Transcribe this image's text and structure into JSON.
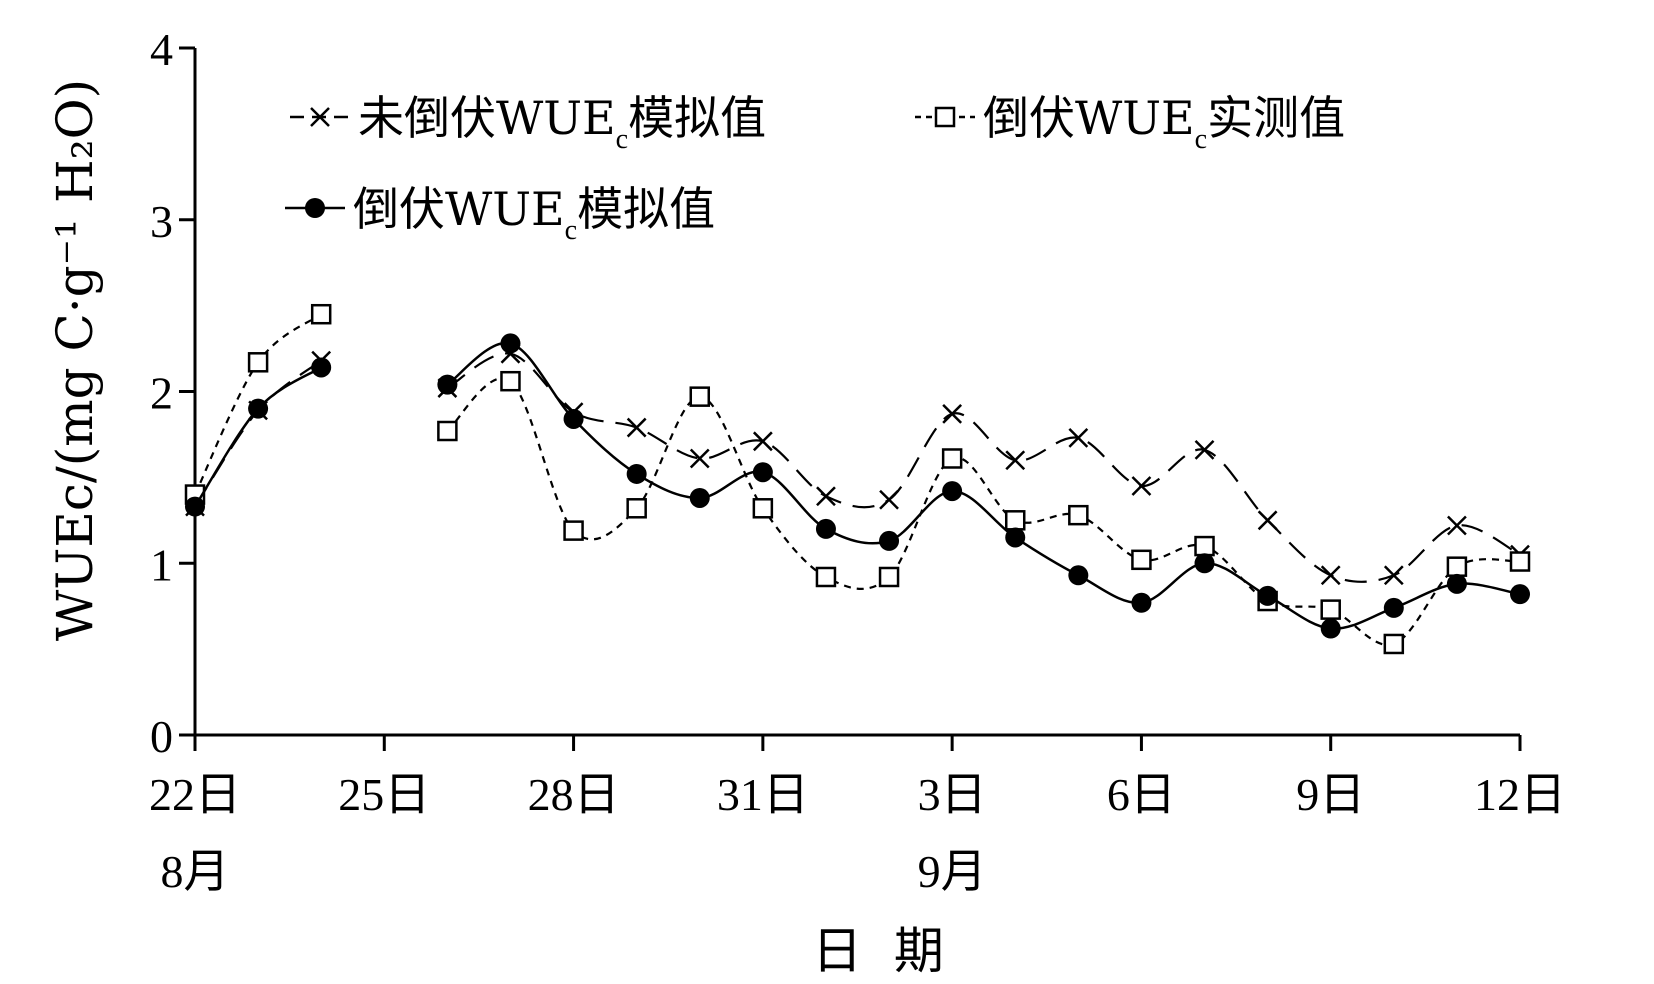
{
  "chart_data": {
    "type": "line",
    "title": "",
    "xlabel": "日  期",
    "ylabel": "WUEc/(mg C·g⁻¹ H₂O)",
    "ylim": [
      0,
      4
    ],
    "yticks": [
      0,
      1,
      2,
      3,
      4
    ],
    "x_tick_labels": [
      {
        "day": 0,
        "label": "22日"
      },
      {
        "day": 3,
        "label": "25日"
      },
      {
        "day": 6,
        "label": "28日"
      },
      {
        "day": 9,
        "label": "31日"
      },
      {
        "day": 12,
        "label": "3日"
      },
      {
        "day": 15,
        "label": "6日"
      },
      {
        "day": 18,
        "label": "9日"
      },
      {
        "day": 21,
        "label": "12日"
      }
    ],
    "month_labels": [
      {
        "day": 0,
        "label": "8月"
      },
      {
        "day": 12,
        "label": "9月"
      }
    ],
    "x": [
      "8-22",
      "8-23",
      "8-24",
      "8-25",
      "8-26",
      "8-27",
      "8-28",
      "8-29",
      "8-30",
      "8-31",
      "9-1",
      "9-2",
      "9-3",
      "9-4",
      "9-5",
      "9-6",
      "9-7",
      "9-8",
      "9-9",
      "9-10",
      "9-11",
      "9-12"
    ],
    "series": [
      {
        "name": "未倒伏WUEc模拟值",
        "legend_main": "未倒伏WUE",
        "legend_sub": "c",
        "legend_tail": "模拟值",
        "marker": "x",
        "line": "dashed",
        "values": [
          1.33,
          1.89,
          2.18,
          null,
          2.02,
          2.22,
          1.88,
          1.79,
          1.61,
          1.71,
          1.39,
          1.37,
          1.87,
          1.6,
          1.73,
          1.45,
          1.66,
          1.25,
          0.93,
          0.93,
          1.22,
          1.05
        ]
      },
      {
        "name": "倒伏WUEc实测值",
        "legend_main": "倒伏WUE",
        "legend_sub": "c",
        "legend_tail": "实测值",
        "marker": "square",
        "line": "dotted",
        "values": [
          1.4,
          2.17,
          2.45,
          null,
          1.77,
          2.06,
          1.19,
          1.32,
          1.97,
          1.32,
          0.92,
          0.92,
          1.61,
          1.25,
          1.28,
          1.02,
          1.1,
          0.78,
          0.73,
          0.53,
          0.98,
          1.01
        ]
      },
      {
        "name": "倒伏WUEc模拟值",
        "legend_main": "倒伏WUE",
        "legend_sub": "c",
        "legend_tail": "模拟值",
        "marker": "circle",
        "line": "solid",
        "values": [
          1.33,
          1.9,
          2.14,
          null,
          2.04,
          2.28,
          1.84,
          1.52,
          1.38,
          1.53,
          1.2,
          1.13,
          1.42,
          1.15,
          0.93,
          0.77,
          1.0,
          0.81,
          0.62,
          0.74,
          0.88,
          0.82
        ]
      }
    ],
    "legend_position": "top-left",
    "grid": false
  }
}
